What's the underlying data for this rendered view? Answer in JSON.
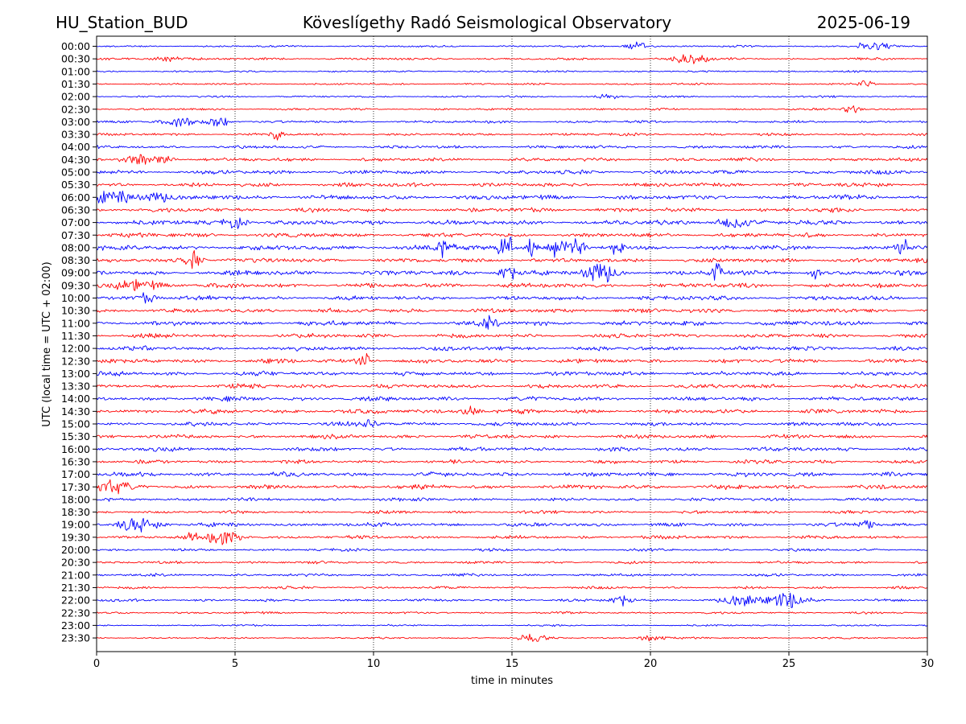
{
  "header": {
    "station": "HU_Station_BUD",
    "observatory": "Köveslígethy Radó Seismological Observatory",
    "date": "2025-06-19"
  },
  "chart_data": {
    "type": "line",
    "title": "Köveslígethy Radó Seismological Observatory",
    "xlabel": "time in minutes",
    "ylabel": "UTC (local time = UTC + 02:00)",
    "xlim": [
      0,
      30
    ],
    "xticks": [
      0,
      5,
      10,
      15,
      20,
      25,
      30
    ],
    "grid": "vertical dotted at x ticks",
    "legend": "none",
    "rows": [
      "00:00",
      "00:30",
      "01:00",
      "01:30",
      "02:00",
      "02:30",
      "03:00",
      "03:30",
      "04:00",
      "04:30",
      "05:00",
      "05:30",
      "06:00",
      "06:30",
      "07:00",
      "07:30",
      "08:00",
      "08:30",
      "09:00",
      "09:30",
      "10:00",
      "10:30",
      "11:00",
      "11:30",
      "12:00",
      "12:30",
      "13:00",
      "13:30",
      "14:00",
      "14:30",
      "15:00",
      "15:30",
      "16:00",
      "16:30",
      "17:00",
      "17:30",
      "18:00",
      "18:30",
      "19:00",
      "19:30",
      "20:00",
      "20:30",
      "21:00",
      "21:30",
      "22:00",
      "22:30",
      "23:00",
      "23:30"
    ],
    "row_colors": [
      "#0000ff",
      "#ff0000"
    ],
    "noise_level": [
      0.22,
      0.28,
      0.2,
      0.22,
      0.22,
      0.24,
      0.3,
      0.3,
      0.35,
      0.4,
      0.48,
      0.48,
      0.55,
      0.5,
      0.55,
      0.5,
      0.55,
      0.5,
      0.55,
      0.55,
      0.5,
      0.5,
      0.55,
      0.5,
      0.5,
      0.5,
      0.5,
      0.48,
      0.5,
      0.5,
      0.48,
      0.45,
      0.48,
      0.42,
      0.5,
      0.5,
      0.4,
      0.35,
      0.45,
      0.4,
      0.3,
      0.3,
      0.32,
      0.3,
      0.3,
      0.25,
      0.2,
      0.2
    ],
    "events": [
      {
        "row": 0,
        "minute": 19.5,
        "amp": 0.6,
        "dur": 0.6
      },
      {
        "row": 0,
        "minute": 28.0,
        "amp": 0.7,
        "dur": 0.8
      },
      {
        "row": 1,
        "minute": 21.5,
        "amp": 0.8,
        "dur": 0.9
      },
      {
        "row": 1,
        "minute": 2.5,
        "amp": 0.4,
        "dur": 0.8
      },
      {
        "row": 3,
        "minute": 27.8,
        "amp": 0.5,
        "dur": 0.5
      },
      {
        "row": 4,
        "minute": 18.5,
        "amp": 0.5,
        "dur": 0.6
      },
      {
        "row": 5,
        "minute": 27.3,
        "amp": 0.5,
        "dur": 0.5
      },
      {
        "row": 6,
        "minute": 4.4,
        "amp": 0.8,
        "dur": 0.6
      },
      {
        "row": 6,
        "minute": 3.0,
        "amp": 0.5,
        "dur": 1.0
      },
      {
        "row": 7,
        "minute": 6.5,
        "amp": 0.8,
        "dur": 0.3
      },
      {
        "row": 9,
        "minute": 1.5,
        "amp": 0.7,
        "dur": 0.8
      },
      {
        "row": 9,
        "minute": 2.5,
        "amp": 0.6,
        "dur": 0.5
      },
      {
        "row": 12,
        "minute": 0.7,
        "amp": 0.9,
        "dur": 1.2
      },
      {
        "row": 12,
        "minute": 2.2,
        "amp": 0.6,
        "dur": 0.6
      },
      {
        "row": 14,
        "minute": 5.0,
        "amp": 0.7,
        "dur": 0.6
      },
      {
        "row": 14,
        "minute": 23.0,
        "amp": 0.9,
        "dur": 0.8
      },
      {
        "row": 16,
        "minute": 12.5,
        "amp": 1.1,
        "dur": 0.6
      },
      {
        "row": 16,
        "minute": 14.6,
        "amp": 1.4,
        "dur": 0.3
      },
      {
        "row": 16,
        "minute": 14.9,
        "amp": 1.6,
        "dur": 0.3
      },
      {
        "row": 16,
        "minute": 15.7,
        "amp": 1.2,
        "dur": 0.3
      },
      {
        "row": 16,
        "minute": 16.5,
        "amp": 1.2,
        "dur": 0.3
      },
      {
        "row": 16,
        "minute": 17.0,
        "amp": 1.2,
        "dur": 0.3
      },
      {
        "row": 16,
        "minute": 17.4,
        "amp": 1.2,
        "dur": 0.3
      },
      {
        "row": 16,
        "minute": 18.8,
        "amp": 1.2,
        "dur": 0.3
      },
      {
        "row": 16,
        "minute": 29.1,
        "amp": 1.3,
        "dur": 0.4
      },
      {
        "row": 17,
        "minute": 3.5,
        "amp": 1.2,
        "dur": 0.5
      },
      {
        "row": 18,
        "minute": 14.9,
        "amp": 1.2,
        "dur": 0.5
      },
      {
        "row": 18,
        "minute": 18.2,
        "amp": 1.3,
        "dur": 0.8
      },
      {
        "row": 18,
        "minute": 22.4,
        "amp": 1.1,
        "dur": 0.3
      },
      {
        "row": 18,
        "minute": 26.0,
        "amp": 0.8,
        "dur": 0.4
      },
      {
        "row": 19,
        "minute": 1.5,
        "amp": 0.6,
        "dur": 1.5
      },
      {
        "row": 20,
        "minute": 1.8,
        "amp": 0.6,
        "dur": 0.6
      },
      {
        "row": 22,
        "minute": 14.2,
        "amp": 0.7,
        "dur": 0.5
      },
      {
        "row": 25,
        "minute": 9.7,
        "amp": 0.9,
        "dur": 0.4
      },
      {
        "row": 29,
        "minute": 13.5,
        "amp": 0.6,
        "dur": 0.6
      },
      {
        "row": 30,
        "minute": 9.9,
        "amp": 0.9,
        "dur": 0.3
      },
      {
        "row": 35,
        "minute": 0.5,
        "amp": 0.6,
        "dur": 1.2
      },
      {
        "row": 38,
        "minute": 1.5,
        "amp": 1.0,
        "dur": 1.0
      },
      {
        "row": 38,
        "minute": 27.8,
        "amp": 0.5,
        "dur": 0.5
      },
      {
        "row": 39,
        "minute": 4.6,
        "amp": 0.8,
        "dur": 1.0
      },
      {
        "row": 39,
        "minute": 3.4,
        "amp": 0.5,
        "dur": 0.4
      },
      {
        "row": 44,
        "minute": 19.0,
        "amp": 1.0,
        "dur": 0.5
      },
      {
        "row": 44,
        "minute": 23.3,
        "amp": 0.8,
        "dur": 1.0
      },
      {
        "row": 44,
        "minute": 25.0,
        "amp": 1.1,
        "dur": 1.0
      },
      {
        "row": 47,
        "minute": 15.8,
        "amp": 0.5,
        "dur": 0.8
      },
      {
        "row": 47,
        "minute": 20.0,
        "amp": 0.4,
        "dur": 0.8
      }
    ]
  }
}
